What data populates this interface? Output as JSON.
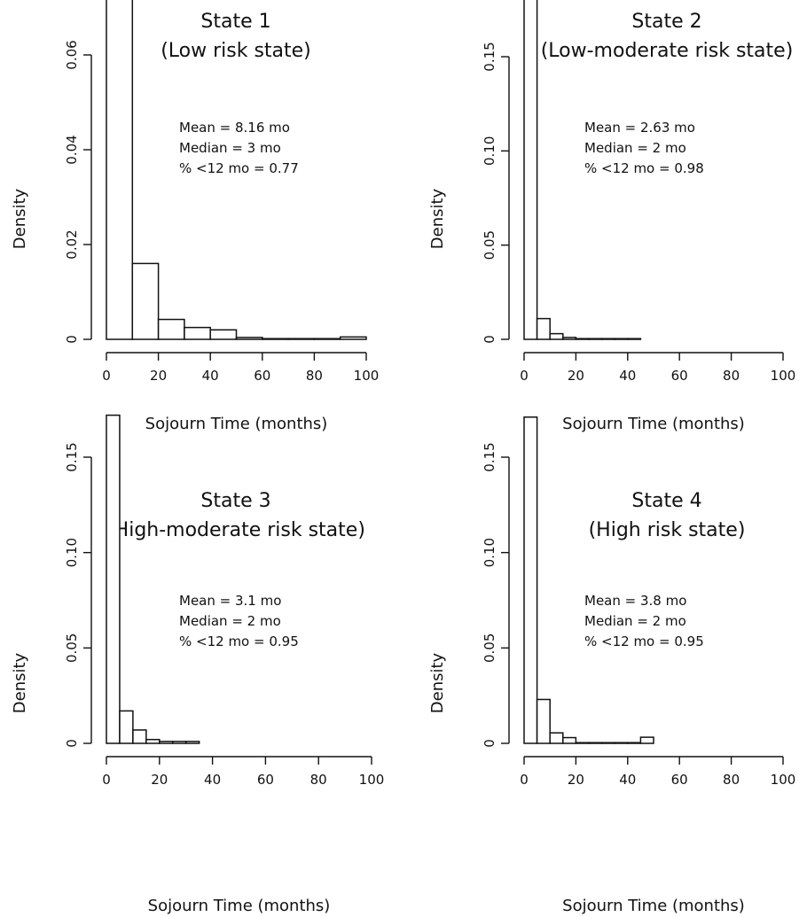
{
  "chart_data": [
    {
      "type": "bar",
      "title_line1": "State 1",
      "title_line2": "(Low risk state)",
      "xlabel": "Sojourn Time (months)",
      "ylabel": "Density",
      "xlim": [
        0,
        100
      ],
      "ylim": [
        0,
        0.06
      ],
      "xticks": [
        "0",
        "20",
        "40",
        "60",
        "80",
        "100"
      ],
      "yticks": [
        "0",
        "0.02",
        "0.04",
        "0.06"
      ],
      "bin_width": 10,
      "bins": [
        [
          0,
          10
        ],
        [
          10,
          20
        ],
        [
          20,
          30
        ],
        [
          30,
          40
        ],
        [
          40,
          50
        ],
        [
          50,
          60
        ],
        [
          60,
          70
        ],
        [
          70,
          80
        ],
        [
          80,
          90
        ],
        [
          90,
          100
        ]
      ],
      "values": [
        0.0745,
        0.016,
        0.0042,
        0.0025,
        0.002,
        0.0004,
        0.0001,
        0.0001,
        0.0001,
        0.0005
      ],
      "annotations": [
        "Mean = 8.16 mo",
        "Median = 3 mo",
        "% <12 mo = 0.77"
      ]
    },
    {
      "type": "bar",
      "title_line1": "State 2",
      "title_line2": "(Low-moderate risk state)",
      "xlabel": "Sojourn Time (months)",
      "ylabel": "Density",
      "xlim": [
        0,
        100
      ],
      "ylim": [
        0,
        0.15
      ],
      "xticks": [
        "0",
        "20",
        "40",
        "60",
        "80",
        "100"
      ],
      "yticks": [
        "0",
        "0.05",
        "0.10",
        "0.15"
      ],
      "bin_width": 5,
      "bins": [
        [
          0,
          5
        ],
        [
          5,
          10
        ],
        [
          10,
          15
        ],
        [
          15,
          20
        ],
        [
          20,
          25
        ],
        [
          25,
          30
        ],
        [
          30,
          35
        ],
        [
          35,
          40
        ],
        [
          40,
          45
        ]
      ],
      "values": [
        0.185,
        0.011,
        0.003,
        0.001,
        0.0003,
        0.0002,
        0.0002,
        0.0002,
        0.0002
      ],
      "annotations": [
        "Mean = 2.63 mo",
        "Median = 2 mo",
        "% <12 mo = 0.98"
      ]
    },
    {
      "type": "bar",
      "title_line1": "State 3",
      "title_line2": "(High-moderate risk state)",
      "xlabel": "Sojourn Time (months)",
      "ylabel": "Density",
      "xlim": [
        0,
        100
      ],
      "ylim": [
        0,
        0.15
      ],
      "xticks": [
        "0",
        "20",
        "40",
        "60",
        "80",
        "100"
      ],
      "yticks": [
        "0",
        "0.05",
        "0.10",
        "0.15"
      ],
      "bin_width": 5,
      "bins": [
        [
          0,
          5
        ],
        [
          5,
          10
        ],
        [
          10,
          15
        ],
        [
          15,
          20
        ],
        [
          20,
          25
        ],
        [
          25,
          30
        ],
        [
          30,
          35
        ]
      ],
      "values": [
        0.172,
        0.017,
        0.007,
        0.002,
        0.001,
        0.001,
        0.001
      ],
      "annotations": [
        "Mean = 3.1 mo",
        "Median = 2 mo",
        "% <12 mo = 0.95"
      ]
    },
    {
      "type": "bar",
      "title_line1": "State 4",
      "title_line2": "(High risk state)",
      "xlabel": "Sojourn Time (months)",
      "ylabel": "Density",
      "xlim": [
        0,
        100
      ],
      "ylim": [
        0,
        0.15
      ],
      "xticks": [
        "0",
        "20",
        "40",
        "60",
        "80",
        "100"
      ],
      "yticks": [
        "0",
        "0.05",
        "0.10",
        "0.15"
      ],
      "bin_width": 5,
      "bins": [
        [
          0,
          5
        ],
        [
          5,
          10
        ],
        [
          10,
          15
        ],
        [
          15,
          20
        ],
        [
          20,
          25
        ],
        [
          25,
          30
        ],
        [
          30,
          35
        ],
        [
          35,
          40
        ],
        [
          40,
          45
        ],
        [
          45,
          50
        ]
      ],
      "values": [
        0.171,
        0.023,
        0.0055,
        0.003,
        0.0003,
        0.0003,
        0.0003,
        0.0003,
        0.0003,
        0.0032
      ],
      "annotations": [
        "Mean = 3.8 mo",
        "Median = 2 mo",
        "% <12 mo = 0.95"
      ]
    }
  ]
}
